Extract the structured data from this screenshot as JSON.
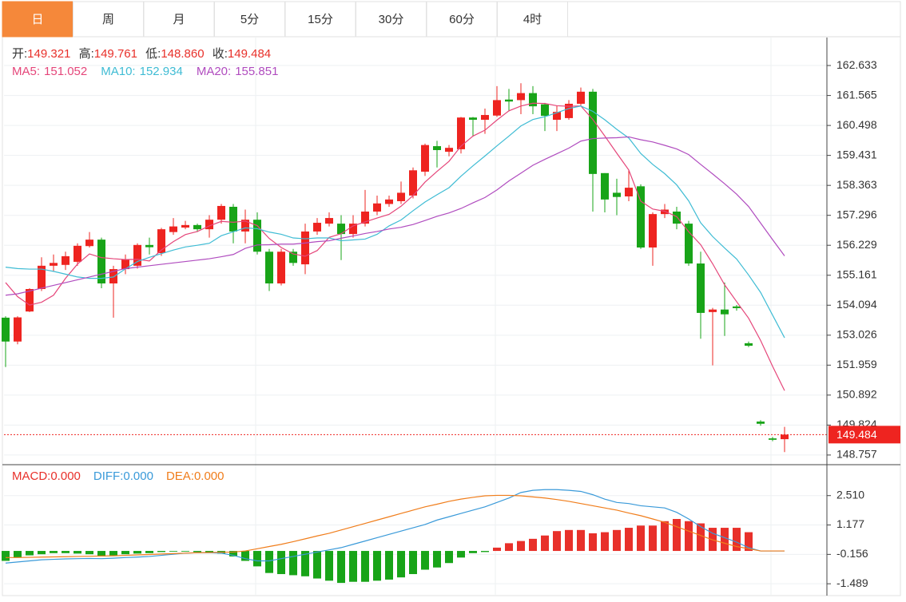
{
  "tabs": [
    "日",
    "周",
    "月",
    "5分",
    "15分",
    "30分",
    "60分",
    "4时"
  ],
  "active_tab": 0,
  "chart_data": [
    {
      "type": "candlestick",
      "info": {
        "open_label": "开:",
        "open": "149.321",
        "high_label": "高:",
        "high": "149.761",
        "low_label": "低:",
        "low": "148.860",
        "close_label": "收:",
        "close": "149.484"
      },
      "up_color": "#ee2420",
      "down_color": "#18a418",
      "open": [
        153.65,
        152.8,
        153.87,
        154.67,
        155.5,
        155.53,
        155.64,
        156.2,
        156.43,
        154.87,
        155.38,
        155.5,
        156.24,
        155.95,
        156.7,
        156.86,
        156.95,
        156.8,
        157.14,
        157.6,
        156.72,
        157.14,
        156.0,
        154.87,
        156.0,
        155.55,
        156.72,
        157.0,
        157.0,
        156.63,
        157.0,
        157.43,
        157.7,
        157.8,
        158.0,
        158.85,
        159.76,
        159.56,
        159.65,
        160.78,
        160.7,
        160.85,
        161.42,
        161.4,
        161.65,
        161.25,
        160.7,
        160.76,
        161.27,
        161.7,
        158.8,
        158.1,
        157.97,
        158.33,
        156.15,
        157.34,
        157.43,
        157.0,
        155.58,
        153.85,
        153.94,
        154.05,
        152.74,
        149.95,
        149.35,
        149.321
      ],
      "high": [
        153.7,
        153.7,
        154.7,
        155.8,
        155.9,
        156.0,
        156.3,
        156.7,
        156.5,
        155.5,
        155.9,
        156.3,
        156.5,
        156.85,
        157.2,
        157.1,
        157.0,
        157.3,
        157.7,
        157.7,
        157.5,
        157.4,
        156.1,
        156.1,
        156.1,
        157.0,
        157.2,
        157.4,
        157.3,
        157.3,
        158.2,
        158.0,
        158.0,
        158.5,
        159.0,
        159.85,
        159.95,
        159.8,
        160.8,
        160.8,
        161.1,
        161.9,
        161.8,
        162.0,
        161.9,
        161.3,
        161.2,
        161.4,
        161.85,
        161.8,
        158.8,
        158.6,
        158.9,
        158.4,
        157.4,
        157.7,
        157.6,
        157.1,
        156.0,
        154.0,
        154.9,
        154.1,
        152.8,
        150.0,
        149.4,
        149.761
      ],
      "low": [
        151.89,
        152.7,
        153.85,
        154.6,
        155.3,
        155.35,
        155.5,
        156.15,
        154.7,
        153.65,
        155.2,
        155.4,
        155.9,
        155.85,
        156.6,
        156.8,
        156.7,
        156.5,
        157.0,
        156.3,
        156.3,
        155.9,
        154.6,
        154.8,
        155.5,
        155.2,
        156.6,
        156.9,
        155.7,
        156.5,
        156.9,
        157.3,
        157.6,
        157.7,
        157.9,
        158.7,
        159.0,
        159.4,
        159.5,
        160.1,
        160.2,
        160.8,
        161.0,
        160.9,
        160.9,
        160.3,
        160.3,
        160.7,
        161.2,
        157.43,
        157.4,
        157.3,
        157.8,
        156.1,
        155.5,
        157.2,
        156.8,
        155.5,
        152.9,
        151.95,
        153.0,
        153.9,
        152.6,
        149.8,
        149.25,
        148.86
      ],
      "close": [
        152.8,
        153.66,
        154.67,
        155.5,
        155.6,
        155.84,
        156.21,
        156.43,
        154.87,
        155.38,
        155.72,
        156.24,
        156.16,
        156.8,
        156.9,
        156.95,
        156.8,
        157.14,
        157.63,
        156.72,
        157.14,
        156.0,
        154.87,
        156.0,
        155.6,
        156.72,
        157.03,
        157.2,
        156.63,
        157.0,
        157.43,
        157.72,
        157.86,
        158.1,
        158.9,
        159.8,
        159.62,
        159.7,
        160.78,
        160.7,
        160.87,
        161.4,
        161.35,
        161.65,
        161.18,
        160.84,
        160.98,
        161.27,
        161.7,
        158.77,
        157.86,
        157.95,
        158.28,
        156.15,
        157.34,
        157.5,
        157.0,
        155.58,
        153.82,
        153.94,
        153.77,
        153.99,
        152.65,
        149.87,
        149.3,
        149.484
      ],
      "series": [
        {
          "name": "MA5:",
          "last_label": "151.052",
          "color": "#e5467a",
          "values": [
            154.9,
            154.4,
            154.1,
            154.2,
            154.45,
            155.05,
            155.56,
            155.92,
            155.79,
            155.75,
            155.72,
            155.73,
            155.67,
            156.06,
            156.36,
            156.61,
            156.72,
            156.92,
            157.08,
            157.05,
            157.09,
            156.93,
            156.47,
            156.15,
            155.92,
            155.84,
            156.04,
            156.51,
            156.64,
            156.92,
            157.06,
            157.2,
            157.33,
            157.62,
            158.0,
            158.48,
            158.86,
            159.22,
            159.76,
            160.12,
            160.33,
            160.69,
            161.02,
            161.19,
            161.29,
            161.28,
            161.2,
            161.18,
            161.19,
            160.71,
            160.12,
            159.51,
            158.91,
            157.8,
            157.52,
            157.44,
            157.25,
            156.71,
            156.25,
            155.57,
            154.82,
            154.22,
            153.63,
            152.84,
            151.92,
            151.052
          ]
        },
        {
          "name": "MA10:",
          "last_label": "152.934",
          "color": "#3fbcd4",
          "values": [
            155.45,
            155.4,
            155.38,
            155.38,
            155.3,
            155.2,
            155.1,
            155.05,
            155.05,
            155.1,
            155.39,
            155.65,
            155.8,
            155.93,
            156.06,
            156.17,
            156.23,
            156.3,
            156.57,
            156.71,
            156.85,
            156.82,
            156.7,
            156.62,
            156.49,
            156.46,
            156.49,
            156.49,
            156.39,
            156.42,
            156.45,
            156.62,
            156.92,
            157.13,
            157.46,
            157.77,
            158.03,
            158.28,
            158.69,
            159.06,
            159.41,
            159.77,
            160.12,
            160.48,
            160.71,
            160.81,
            160.95,
            161.1,
            161.19,
            161.0,
            160.7,
            160.36,
            160.05,
            159.5,
            159.11,
            158.78,
            158.38,
            157.81,
            157.03,
            156.54,
            156.13,
            155.74,
            155.17,
            154.55,
            153.74,
            152.934
          ]
        },
        {
          "name": "MA20:",
          "last_label": "155.851",
          "color": "#b04cbf",
          "values": [
            154.45,
            154.5,
            154.6,
            154.7,
            154.8,
            154.9,
            155.0,
            155.1,
            155.2,
            155.3,
            155.4,
            155.45,
            155.5,
            155.55,
            155.6,
            155.65,
            155.7,
            155.75,
            155.82,
            155.9,
            156.12,
            156.24,
            156.25,
            156.27,
            156.27,
            156.31,
            156.36,
            156.39,
            156.48,
            156.56,
            156.65,
            156.72,
            156.81,
            156.87,
            156.97,
            157.11,
            157.26,
            157.38,
            157.54,
            157.74,
            157.93,
            158.2,
            158.52,
            158.8,
            159.08,
            159.29,
            159.49,
            159.69,
            159.94,
            160.03,
            160.05,
            160.06,
            160.09,
            159.99,
            159.91,
            159.79,
            159.66,
            159.46,
            159.11,
            158.77,
            158.42,
            158.05,
            157.61,
            157.02,
            156.43,
            155.851
          ]
        }
      ],
      "last_price": 149.484,
      "last_price_color": "#ee2420",
      "ylim": [
        148.47,
        163.63
      ],
      "yticks": [
        162.633,
        161.565,
        160.498,
        159.431,
        158.363,
        157.296,
        156.229,
        155.161,
        154.094,
        153.026,
        151.959,
        150.892,
        149.824,
        148.757
      ],
      "grid": true
    },
    {
      "type": "macd",
      "series": [
        {
          "name": "MACD:",
          "last_label": "0.000",
          "color": "#e8302a",
          "down_color": "#18a418",
          "values": [
            -0.45,
            -0.3,
            -0.2,
            -0.15,
            -0.1,
            -0.1,
            -0.12,
            -0.15,
            -0.25,
            -0.2,
            -0.15,
            -0.12,
            -0.1,
            -0.05,
            -0.03,
            -0.03,
            -0.05,
            -0.08,
            -0.12,
            -0.25,
            -0.45,
            -0.7,
            -1.0,
            -1.05,
            -1.1,
            -1.15,
            -1.25,
            -1.35,
            -1.45,
            -1.4,
            -1.4,
            -1.35,
            -1.3,
            -1.2,
            -1.05,
            -0.85,
            -0.75,
            -0.55,
            -0.3,
            -0.1,
            -0.05,
            0.15,
            0.35,
            0.45,
            0.55,
            0.7,
            0.9,
            0.95,
            0.95,
            0.8,
            0.85,
            0.95,
            1.05,
            1.15,
            1.15,
            1.35,
            1.45,
            1.35,
            1.25,
            1.05,
            1.05,
            1.05,
            0.85,
            0,
            0,
            0
          ]
        },
        {
          "name": "DIFF:",
          "last_label": "0.000",
          "color": "#3a9ad9",
          "values": [
            -0.55,
            -0.5,
            -0.45,
            -0.4,
            -0.38,
            -0.36,
            -0.35,
            -0.34,
            -0.35,
            -0.33,
            -0.3,
            -0.28,
            -0.25,
            -0.2,
            -0.15,
            -0.1,
            -0.08,
            -0.08,
            -0.1,
            -0.2,
            -0.35,
            -0.45,
            -0.45,
            -0.35,
            -0.25,
            -0.15,
            -0.05,
            0.05,
            0.15,
            0.3,
            0.45,
            0.6,
            0.75,
            0.9,
            1.05,
            1.2,
            1.4,
            1.55,
            1.7,
            1.85,
            2.0,
            2.2,
            2.4,
            2.65,
            2.75,
            2.78,
            2.78,
            2.75,
            2.7,
            2.55,
            2.35,
            2.2,
            2.15,
            2.05,
            2.0,
            1.95,
            1.75,
            1.45,
            1.1,
            0.8,
            0.6,
            0.4,
            0.15,
            0,
            0,
            0
          ]
        },
        {
          "name": "DEA:",
          "last_label": "0.000",
          "color": "#f07d1b",
          "values": [
            -0.3,
            -0.3,
            -0.29,
            -0.28,
            -0.27,
            -0.26,
            -0.25,
            -0.24,
            -0.23,
            -0.22,
            -0.2,
            -0.18,
            -0.16,
            -0.14,
            -0.12,
            -0.1,
            -0.08,
            -0.07,
            -0.06,
            -0.05,
            0,
            0.1,
            0.2,
            0.3,
            0.42,
            0.55,
            0.68,
            0.8,
            0.95,
            1.1,
            1.25,
            1.4,
            1.55,
            1.7,
            1.85,
            2.0,
            2.12,
            2.25,
            2.35,
            2.43,
            2.5,
            2.52,
            2.52,
            2.5,
            2.45,
            2.4,
            2.33,
            2.25,
            2.15,
            2.05,
            1.95,
            1.85,
            1.72,
            1.6,
            1.45,
            1.3,
            1.1,
            0.9,
            0.7,
            0.5,
            0.35,
            0.2,
            0.1,
            0,
            0,
            0
          ]
        }
      ],
      "ylim": [
        -1.99,
        3.84
      ],
      "yticks": [
        {
          "value": 2.51,
          "label": "2.510"
        },
        1.177,
        -0.156,
        -1.489
      ],
      "grid": true
    }
  ]
}
